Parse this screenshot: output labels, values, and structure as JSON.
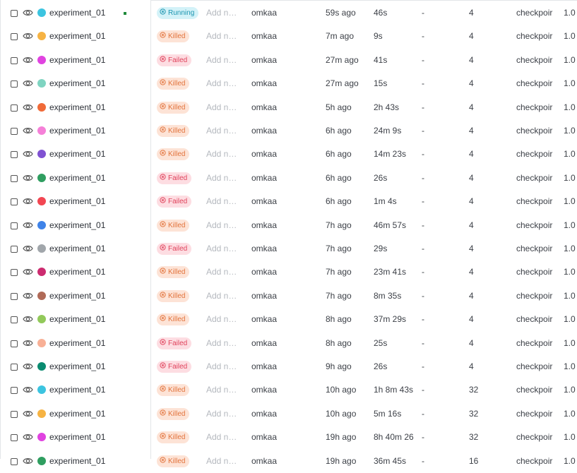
{
  "rows": [
    {
      "name": "experiment_01",
      "color": "#3cc4e0",
      "state": {
        "label": "Running",
        "color": "#1b95b0",
        "background": "#d3f2f8"
      },
      "notes": "Add n…",
      "user": "omkaa",
      "created": "59s ago",
      "runtime": "46s",
      "col": "-",
      "count": 4,
      "tag": "checkpoir",
      "version": "1.0"
    },
    {
      "name": "experiment_01",
      "color": "#f6b343",
      "state": {
        "label": "Killed",
        "color": "#e2733c",
        "background": "#fde3d6"
      },
      "notes": "Add n…",
      "user": "omkaa",
      "created": "7m ago",
      "runtime": "9s",
      "col": "-",
      "count": 4,
      "tag": "checkpoir",
      "version": "1.0"
    },
    {
      "name": "experiment_01",
      "color": "#e043e0",
      "state": {
        "label": "Failed",
        "color": "#e0435c",
        "background": "#fddde2"
      },
      "notes": "Add n…",
      "user": "omkaa",
      "created": "27m ago",
      "runtime": "41s",
      "col": "-",
      "count": 4,
      "tag": "checkpoir",
      "version": "1.0"
    },
    {
      "name": "experiment_01",
      "color": "#7fd4c1",
      "state": {
        "label": "Killed",
        "color": "#e2733c",
        "background": "#fde3d6"
      },
      "notes": "Add n…",
      "user": "omkaa",
      "created": "27m ago",
      "runtime": "15s",
      "col": "-",
      "count": 4,
      "tag": "checkpoir",
      "version": "1.0"
    },
    {
      "name": "experiment_01",
      "color": "#f06a38",
      "state": {
        "label": "Killed",
        "color": "#e2733c",
        "background": "#fde3d6"
      },
      "notes": "Add n…",
      "user": "omkaa",
      "created": "5h ago",
      "runtime": "2h 43s",
      "col": "-",
      "count": 4,
      "tag": "checkpoir",
      "version": "1.0"
    },
    {
      "name": "experiment_01",
      "color": "#f580d8",
      "state": {
        "label": "Killed",
        "color": "#e2733c",
        "background": "#fde3d6"
      },
      "notes": "Add n…",
      "user": "omkaa",
      "created": "6h ago",
      "runtime": "24m 9s",
      "col": "-",
      "count": 4,
      "tag": "checkpoir",
      "version": "1.0"
    },
    {
      "name": "experiment_01",
      "color": "#8052d2",
      "state": {
        "label": "Killed",
        "color": "#e2733c",
        "background": "#fde3d6"
      },
      "notes": "Add n…",
      "user": "omkaa",
      "created": "6h ago",
      "runtime": "14m 23s",
      "col": "-",
      "count": 4,
      "tag": "checkpoir",
      "version": "1.0"
    },
    {
      "name": "experiment_01",
      "color": "#2f9e60",
      "state": {
        "label": "Failed",
        "color": "#e0435c",
        "background": "#fddde2"
      },
      "notes": "Add n…",
      "user": "omkaa",
      "created": "6h ago",
      "runtime": "26s",
      "col": "-",
      "count": 4,
      "tag": "checkpoir",
      "version": "1.0"
    },
    {
      "name": "experiment_01",
      "color": "#f24652",
      "state": {
        "label": "Failed",
        "color": "#e0435c",
        "background": "#fddde2"
      },
      "notes": "Add n…",
      "user": "omkaa",
      "created": "6h ago",
      "runtime": "1m 4s",
      "col": "-",
      "count": 4,
      "tag": "checkpoir",
      "version": "1.0"
    },
    {
      "name": "experiment_01",
      "color": "#3f83e8",
      "state": {
        "label": "Killed",
        "color": "#e2733c",
        "background": "#fde3d6"
      },
      "notes": "Add n…",
      "user": "omkaa",
      "created": "7h ago",
      "runtime": "46m 57s",
      "col": "-",
      "count": 4,
      "tag": "checkpoir",
      "version": "1.0"
    },
    {
      "name": "experiment_01",
      "color": "#a1a6ab",
      "state": {
        "label": "Failed",
        "color": "#e0435c",
        "background": "#fddde2"
      },
      "notes": "Add n…",
      "user": "omkaa",
      "created": "7h ago",
      "runtime": "29s",
      "col": "-",
      "count": 4,
      "tag": "checkpoir",
      "version": "1.0"
    },
    {
      "name": "experiment_01",
      "color": "#cc2b6f",
      "state": {
        "label": "Killed",
        "color": "#e2733c",
        "background": "#fde3d6"
      },
      "notes": "Add n…",
      "user": "omkaa",
      "created": "7h ago",
      "runtime": "23m 41s",
      "col": "-",
      "count": 4,
      "tag": "checkpoir",
      "version": "1.0"
    },
    {
      "name": "experiment_01",
      "color": "#b06a57",
      "state": {
        "label": "Killed",
        "color": "#e2733c",
        "background": "#fde3d6"
      },
      "notes": "Add n…",
      "user": "omkaa",
      "created": "7h ago",
      "runtime": "8m 35s",
      "col": "-",
      "count": 4,
      "tag": "checkpoir",
      "version": "1.0"
    },
    {
      "name": "experiment_01",
      "color": "#92c95a",
      "state": {
        "label": "Killed",
        "color": "#e2733c",
        "background": "#fde3d6"
      },
      "notes": "Add n…",
      "user": "omkaa",
      "created": "8h ago",
      "runtime": "37m 29s",
      "col": "-",
      "count": 4,
      "tag": "checkpoir",
      "version": "1.0"
    },
    {
      "name": "experiment_01",
      "color": "#f8b096",
      "state": {
        "label": "Failed",
        "color": "#e0435c",
        "background": "#fddde2"
      },
      "notes": "Add n…",
      "user": "omkaa",
      "created": "8h ago",
      "runtime": "25s",
      "col": "-",
      "count": 4,
      "tag": "checkpoir",
      "version": "1.0"
    },
    {
      "name": "experiment_01",
      "color": "#0a8b70",
      "state": {
        "label": "Failed",
        "color": "#e0435c",
        "background": "#fddde2"
      },
      "notes": "Add n…",
      "user": "omkaa",
      "created": "9h ago",
      "runtime": "26s",
      "col": "-",
      "count": 4,
      "tag": "checkpoir",
      "version": "1.0"
    },
    {
      "name": "experiment_01",
      "color": "#3cc4e0",
      "state": {
        "label": "Killed",
        "color": "#e2733c",
        "background": "#fde3d6"
      },
      "notes": "Add n…",
      "user": "omkaa",
      "created": "10h ago",
      "runtime": "1h 8m 43s",
      "col": "-",
      "count": 32,
      "tag": "checkpoir",
      "version": "1.0"
    },
    {
      "name": "experiment_01",
      "color": "#f6b343",
      "state": {
        "label": "Killed",
        "color": "#e2733c",
        "background": "#fde3d6"
      },
      "notes": "Add n…",
      "user": "omkaa",
      "created": "10h ago",
      "runtime": "5m 16s",
      "col": "-",
      "count": 32,
      "tag": "checkpoir",
      "version": "1.0"
    },
    {
      "name": "experiment_01",
      "color": "#e043e0",
      "state": {
        "label": "Killed",
        "color": "#e2733c",
        "background": "#fde3d6"
      },
      "notes": "Add n…",
      "user": "omkaa",
      "created": "19h ago",
      "runtime": "8h 40m 26",
      "col": "-",
      "count": 32,
      "tag": "checkpoir",
      "version": "1.0"
    },
    {
      "name": "experiment_01",
      "color": "#2f9e60",
      "state": {
        "label": "Killed",
        "color": "#e2733c",
        "background": "#fde3d6"
      },
      "notes": "Add n…",
      "user": "omkaa",
      "created": "19h ago",
      "runtime": "36m 45s",
      "col": "-",
      "count": 16,
      "tag": "checkpoir",
      "version": "1.0"
    }
  ]
}
